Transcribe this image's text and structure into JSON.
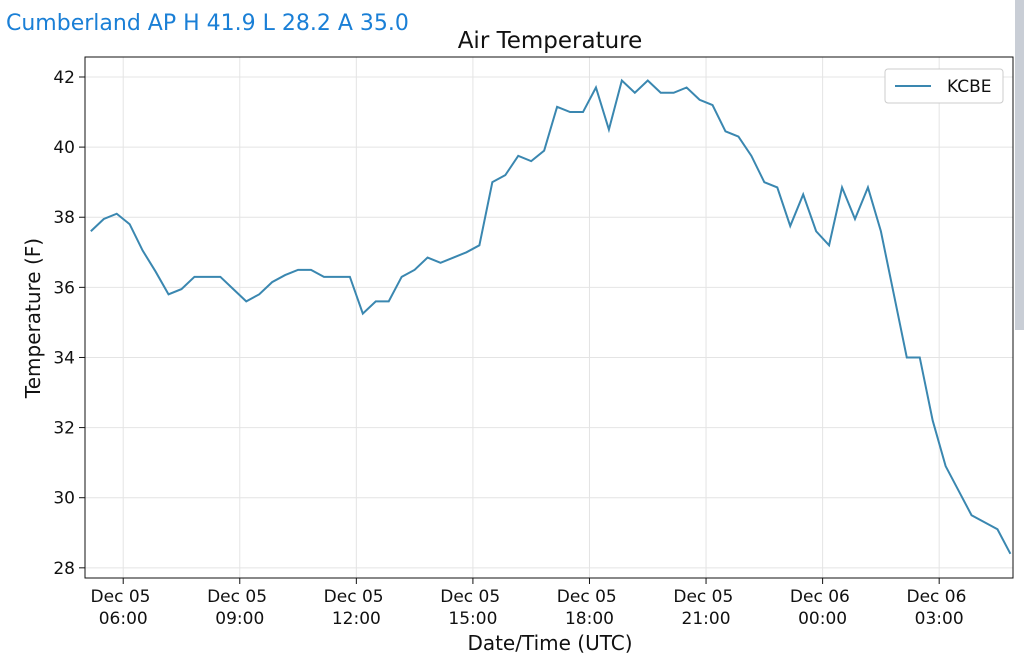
{
  "header": {
    "text": "Cumberland AP H 41.9 L 28.2 A 35.0"
  },
  "chart_data": {
    "type": "line",
    "title": "Air Temperature",
    "xlabel": "Date/Time (UTC)",
    "ylabel": "Temperature (F)",
    "x": [
      "Dec 05 05:10",
      "Dec 05 05:30",
      "Dec 05 05:50",
      "Dec 05 06:10",
      "Dec 05 06:30",
      "Dec 05 06:50",
      "Dec 05 07:10",
      "Dec 05 07:30",
      "Dec 05 07:50",
      "Dec 05 08:10",
      "Dec 05 08:30",
      "Dec 05 08:50",
      "Dec 05 09:10",
      "Dec 05 09:30",
      "Dec 05 09:50",
      "Dec 05 10:10",
      "Dec 05 10:30",
      "Dec 05 10:50",
      "Dec 05 11:10",
      "Dec 05 11:30",
      "Dec 05 11:50",
      "Dec 05 12:10",
      "Dec 05 12:30",
      "Dec 05 12:50",
      "Dec 05 13:10",
      "Dec 05 13:30",
      "Dec 05 13:50",
      "Dec 05 14:10",
      "Dec 05 14:30",
      "Dec 05 14:50",
      "Dec 05 15:10",
      "Dec 05 15:30",
      "Dec 05 15:50",
      "Dec 05 16:10",
      "Dec 05 16:30",
      "Dec 05 16:50",
      "Dec 05 17:10",
      "Dec 05 17:30",
      "Dec 05 17:50",
      "Dec 05 18:10",
      "Dec 05 18:30",
      "Dec 05 18:50",
      "Dec 05 19:10",
      "Dec 05 19:30",
      "Dec 05 19:50",
      "Dec 05 20:10",
      "Dec 05 20:30",
      "Dec 05 20:50",
      "Dec 05 21:10",
      "Dec 05 21:30",
      "Dec 05 21:50",
      "Dec 05 22:10",
      "Dec 05 22:30",
      "Dec 05 22:50",
      "Dec 05 23:10",
      "Dec 05 23:30",
      "Dec 05 23:50",
      "Dec 06 00:10",
      "Dec 06 00:30",
      "Dec 06 00:50",
      "Dec 06 01:10",
      "Dec 06 01:30",
      "Dec 06 01:50",
      "Dec 06 02:10",
      "Dec 06 02:30",
      "Dec 06 02:50",
      "Dec 06 03:10",
      "Dec 06 03:30",
      "Dec 06 03:50",
      "Dec 06 04:10",
      "Dec 06 04:30",
      "Dec 06 04:50"
    ],
    "series": [
      {
        "name": "KCBE",
        "color": "#3a87b0",
        "values": [
          37.6,
          37.95,
          38.1,
          37.8,
          37.05,
          36.45,
          35.8,
          35.95,
          36.3,
          36.3,
          36.3,
          35.95,
          35.6,
          35.8,
          36.15,
          36.35,
          36.5,
          36.5,
          36.3,
          36.3,
          36.3,
          35.25,
          35.6,
          35.6,
          36.3,
          36.5,
          36.85,
          36.7,
          36.85,
          37.0,
          37.2,
          39.0,
          39.2,
          39.75,
          39.6,
          39.9,
          41.15,
          41.0,
          41.0,
          41.7,
          40.5,
          41.9,
          41.55,
          41.9,
          41.55,
          41.55,
          41.7,
          41.35,
          41.2,
          40.45,
          40.3,
          39.75,
          39.0,
          38.85,
          37.75,
          38.65,
          37.6,
          37.2,
          38.85,
          37.95,
          38.85,
          37.6,
          35.8,
          34.0,
          34.0,
          32.2,
          30.9,
          30.2,
          29.5,
          29.3,
          29.1,
          28.4
        ]
      }
    ],
    "xlim": [
      "Dec 05 05:01",
      "Dec 06 04:54"
    ],
    "xticks": [
      "Dec 05 06:00",
      "Dec 05 09:00",
      "Dec 05 12:00",
      "Dec 05 15:00",
      "Dec 05 18:00",
      "Dec 05 21:00",
      "Dec 06 00:00",
      "Dec 06 03:00"
    ],
    "ylim": [
      27.71,
      42.57
    ],
    "yticks": [
      28,
      30,
      32,
      34,
      36,
      38,
      40,
      42
    ],
    "grid": true,
    "legend": "upper right"
  }
}
